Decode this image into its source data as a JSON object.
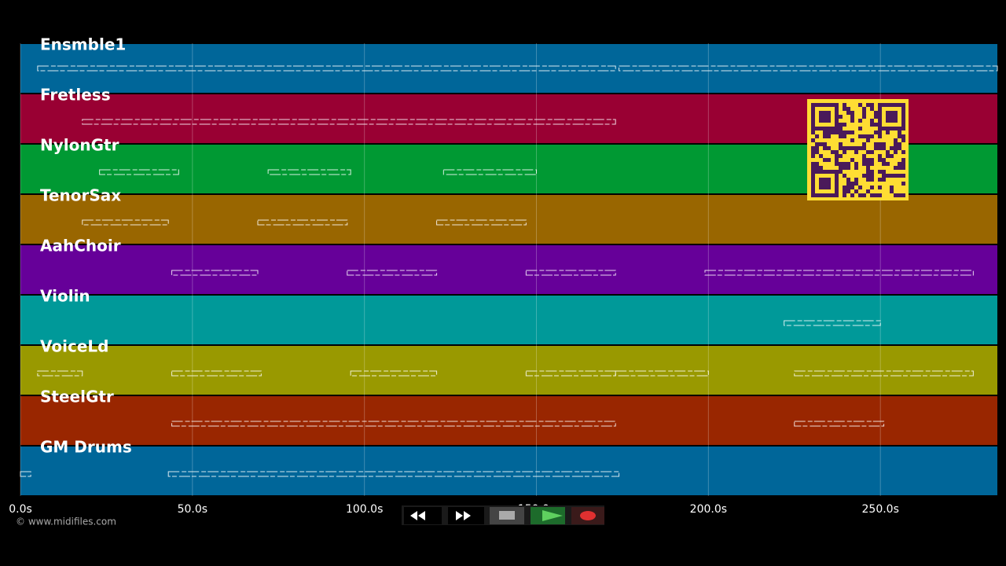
{
  "chart_data": {
    "type": "piano-roll",
    "xlim": [
      0,
      284
    ],
    "xticks": [
      {
        "value": 0,
        "label": "0.0s"
      },
      {
        "value": 50,
        "label": "50.0s"
      },
      {
        "value": 100,
        "label": "100.0s"
      },
      {
        "value": 150,
        "label": "150.0s"
      },
      {
        "value": 200,
        "label": "200.0s"
      },
      {
        "value": 250,
        "label": "250.0s"
      }
    ],
    "grid": true,
    "tracks": [
      {
        "name": "Ensmble1",
        "color": "#006699",
        "segments": [
          [
            5,
            173
          ],
          [
            174,
            284
          ]
        ]
      },
      {
        "name": "Fretless",
        "color": "#990033",
        "segments": [
          [
            18,
            173
          ]
        ]
      },
      {
        "name": "NylonGtr",
        "color": "#009933",
        "segments": [
          [
            23,
            46
          ],
          [
            72,
            96
          ],
          [
            123,
            150
          ]
        ]
      },
      {
        "name": "TenorSax",
        "color": "#996600",
        "segments": [
          [
            18,
            43
          ],
          [
            69,
            95
          ],
          [
            121,
            147
          ]
        ]
      },
      {
        "name": "AahChoir",
        "color": "#660099",
        "segments": [
          [
            44,
            69
          ],
          [
            95,
            121
          ],
          [
            147,
            173
          ],
          [
            199,
            277
          ]
        ]
      },
      {
        "name": "Violin",
        "color": "#009999",
        "segments": [
          [
            222,
            250
          ]
        ]
      },
      {
        "name": "VoiceLd",
        "color": "#999900",
        "segments": [
          [
            5,
            18
          ],
          [
            44,
            70
          ],
          [
            96,
            121
          ],
          [
            147,
            173
          ],
          [
            173,
            200
          ],
          [
            225,
            277
          ]
        ]
      },
      {
        "name": "SteelGtr",
        "color": "#992600",
        "segments": [
          [
            44,
            173
          ],
          [
            225,
            251
          ]
        ]
      },
      {
        "name": "GM Drums",
        "color": "#006699",
        "segments": [
          [
            0,
            3
          ],
          [
            43,
            174
          ]
        ]
      }
    ]
  },
  "footer": {
    "copyright": "© www.midifiles.com"
  }
}
